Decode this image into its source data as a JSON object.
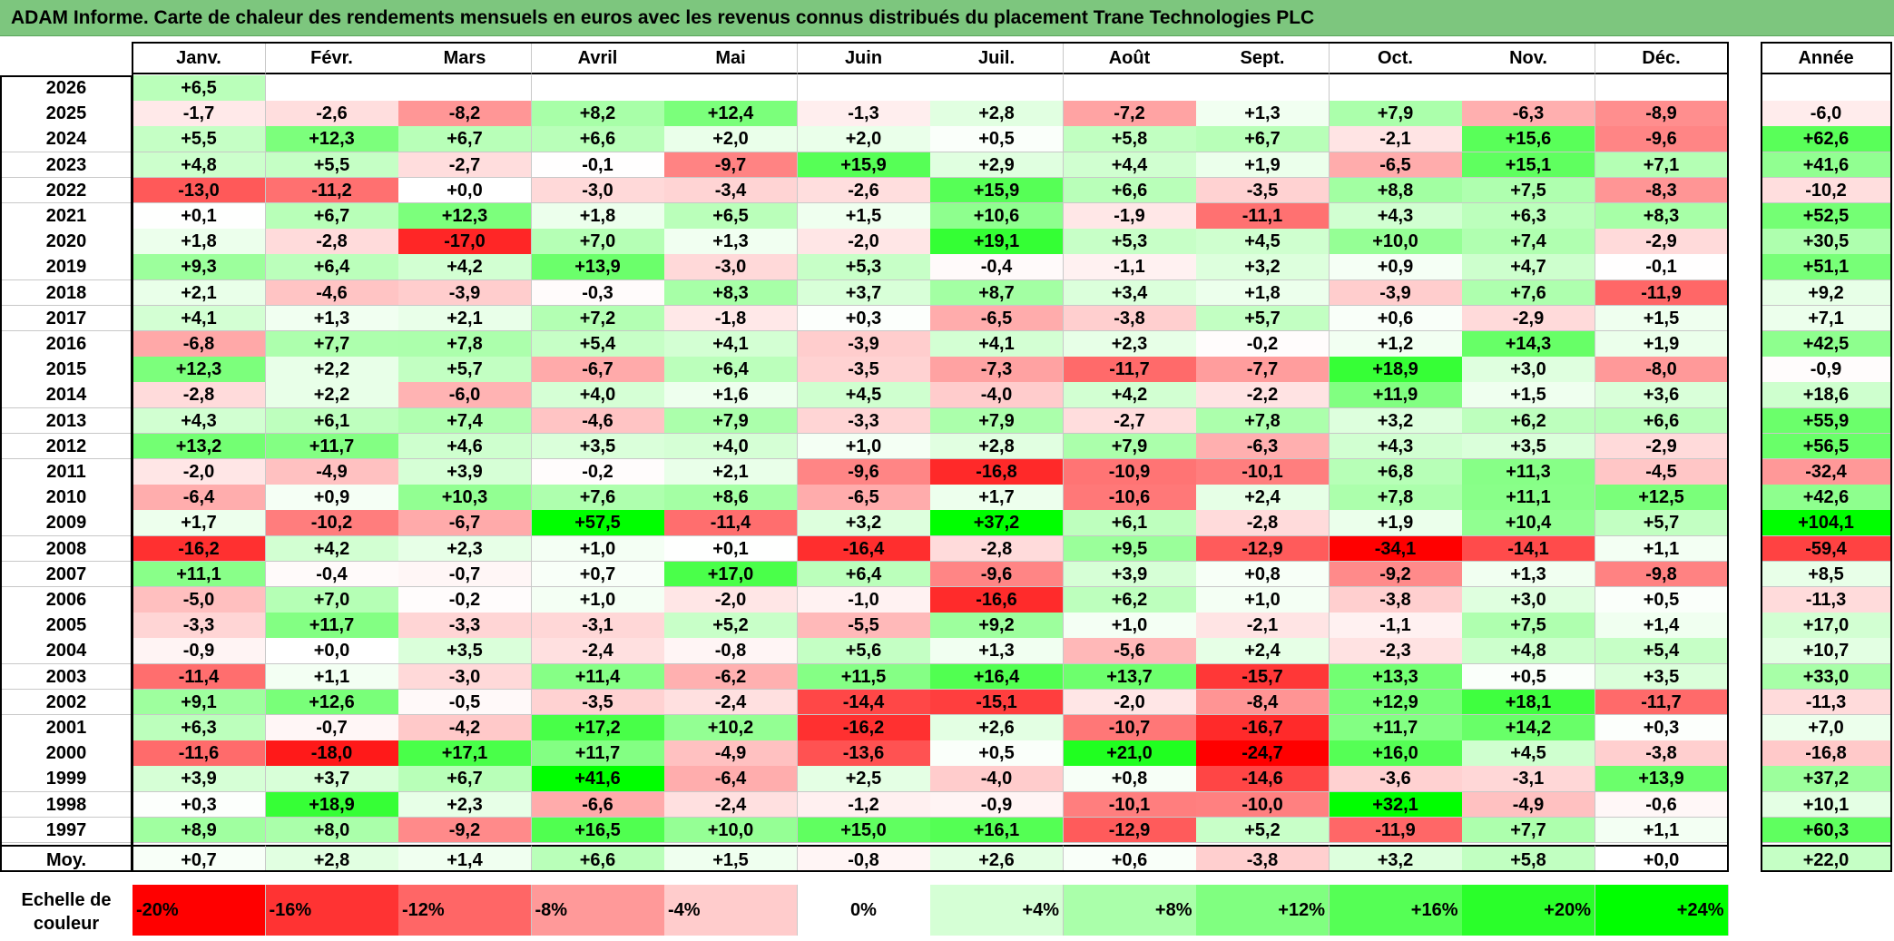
{
  "title": "ADAM Informe. Carte de chaleur des rendements mensuels en euros avec les revenus connus distribués du placement Trane Technologies PLC",
  "chart_data": {
    "type": "heatmap",
    "columns": [
      "Janv.",
      "Févr.",
      "Mars",
      "Avril",
      "Mai",
      "Juin",
      "Juil.",
      "Août",
      "Sept.",
      "Oct.",
      "Nov.",
      "Déc."
    ],
    "year_column_label": "Année",
    "rows": [
      {
        "year": "2026",
        "months": [
          "+6,5",
          "",
          "",
          "",
          "",
          "",
          "",
          "",
          "",
          "",
          "",
          ""
        ],
        "annual": ""
      },
      {
        "year": "2025",
        "months": [
          "-1,7",
          "-2,6",
          "-8,2",
          "+8,2",
          "+12,4",
          "-1,3",
          "+2,8",
          "-7,2",
          "+1,3",
          "+7,9",
          "-6,3",
          "-8,9"
        ],
        "annual": "-6,0"
      },
      {
        "year": "2024",
        "months": [
          "+5,5",
          "+12,3",
          "+6,7",
          "+6,6",
          "+2,0",
          "+2,0",
          "+0,5",
          "+5,8",
          "+6,7",
          "-2,1",
          "+15,6",
          "-9,6"
        ],
        "annual": "+62,6"
      },
      {
        "year": "2023",
        "months": [
          "+4,8",
          "+5,5",
          "-2,7",
          "-0,1",
          "-9,7",
          "+15,9",
          "+2,9",
          "+4,4",
          "+1,9",
          "-6,5",
          "+15,1",
          "+7,1"
        ],
        "annual": "+41,6"
      },
      {
        "year": "2022",
        "months": [
          "-13,0",
          "-11,2",
          "+0,0",
          "-3,0",
          "-3,4",
          "-2,6",
          "+15,9",
          "+6,6",
          "-3,5",
          "+8,8",
          "+7,5",
          "-8,3"
        ],
        "annual": "-10,2"
      },
      {
        "year": "2021",
        "months": [
          "+0,1",
          "+6,7",
          "+12,3",
          "+1,8",
          "+6,5",
          "+1,5",
          "+10,6",
          "-1,9",
          "-11,1",
          "+4,3",
          "+6,3",
          "+8,3"
        ],
        "annual": "+52,5"
      },
      {
        "year": "2020",
        "months": [
          "+1,8",
          "-2,8",
          "-17,0",
          "+7,0",
          "+1,3",
          "-2,0",
          "+19,1",
          "+5,3",
          "+4,5",
          "+10,0",
          "+7,4",
          "-2,9"
        ],
        "annual": "+30,5"
      },
      {
        "year": "2019",
        "months": [
          "+9,3",
          "+6,4",
          "+4,2",
          "+13,9",
          "-3,0",
          "+5,3",
          "-0,4",
          "-1,1",
          "+3,2",
          "+0,9",
          "+4,7",
          "-0,1"
        ],
        "annual": "+51,1"
      },
      {
        "year": "2018",
        "months": [
          "+2,1",
          "-4,6",
          "-3,9",
          "-0,3",
          "+8,3",
          "+3,7",
          "+8,7",
          "+3,4",
          "+1,8",
          "-3,9",
          "+7,6",
          "-11,9"
        ],
        "annual": "+9,2"
      },
      {
        "year": "2017",
        "months": [
          "+4,1",
          "+1,3",
          "+2,1",
          "+7,2",
          "-1,8",
          "+0,3",
          "-6,5",
          "-3,8",
          "+5,7",
          "+0,6",
          "-2,9",
          "+1,5"
        ],
        "annual": "+7,1"
      },
      {
        "year": "2016",
        "months": [
          "-6,8",
          "+7,7",
          "+7,8",
          "+5,4",
          "+4,1",
          "-3,9",
          "+4,1",
          "+2,3",
          "-0,2",
          "+1,2",
          "+14,3",
          "+1,9"
        ],
        "annual": "+42,5"
      },
      {
        "year": "2015",
        "months": [
          "+12,3",
          "+2,2",
          "+5,7",
          "-6,7",
          "+6,4",
          "-3,5",
          "-7,3",
          "-11,7",
          "-7,7",
          "+18,9",
          "+3,0",
          "-8,0"
        ],
        "annual": "-0,9"
      },
      {
        "year": "2014",
        "months": [
          "-2,8",
          "+2,2",
          "-6,0",
          "+4,0",
          "+1,6",
          "+4,5",
          "-4,0",
          "+4,2",
          "-2,2",
          "+11,9",
          "+1,5",
          "+3,6"
        ],
        "annual": "+18,6"
      },
      {
        "year": "2013",
        "months": [
          "+4,3",
          "+6,1",
          "+7,4",
          "-4,6",
          "+7,9",
          "-3,3",
          "+7,9",
          "-2,7",
          "+7,8",
          "+3,2",
          "+6,2",
          "+6,6"
        ],
        "annual": "+55,9"
      },
      {
        "year": "2012",
        "months": [
          "+13,2",
          "+11,7",
          "+4,6",
          "+3,5",
          "+4,0",
          "+1,0",
          "+2,8",
          "+7,9",
          "-6,3",
          "+4,3",
          "+3,5",
          "-2,9"
        ],
        "annual": "+56,5"
      },
      {
        "year": "2011",
        "months": [
          "-2,0",
          "-4,9",
          "+3,9",
          "-0,2",
          "+2,1",
          "-9,6",
          "-16,8",
          "-10,9",
          "-10,1",
          "+6,8",
          "+11,3",
          "-4,5"
        ],
        "annual": "-32,4"
      },
      {
        "year": "2010",
        "months": [
          "-6,4",
          "+0,9",
          "+10,3",
          "+7,6",
          "+8,6",
          "-6,5",
          "+1,7",
          "-10,6",
          "+2,4",
          "+7,8",
          "+11,1",
          "+12,5"
        ],
        "annual": "+42,6"
      },
      {
        "year": "2009",
        "months": [
          "+1,7",
          "-10,2",
          "-6,7",
          "+57,5",
          "-11,4",
          "+3,2",
          "+37,2",
          "+6,1",
          "-2,8",
          "+1,9",
          "+10,4",
          "+5,7"
        ],
        "annual": "+104,1"
      },
      {
        "year": "2008",
        "months": [
          "-16,2",
          "+4,2",
          "+2,3",
          "+1,0",
          "+0,1",
          "-16,4",
          "-2,8",
          "+9,5",
          "-12,9",
          "-34,1",
          "-14,1",
          "+1,1"
        ],
        "annual": "-59,4"
      },
      {
        "year": "2007",
        "months": [
          "+11,1",
          "-0,4",
          "-0,7",
          "+0,7",
          "+17,0",
          "+6,4",
          "-9,6",
          "+3,9",
          "+0,8",
          "-9,2",
          "+1,3",
          "-9,8"
        ],
        "annual": "+8,5"
      },
      {
        "year": "2006",
        "months": [
          "-5,0",
          "+7,0",
          "-0,2",
          "+1,0",
          "-2,0",
          "-1,0",
          "-16,6",
          "+6,2",
          "+1,0",
          "-3,8",
          "+3,0",
          "+0,5"
        ],
        "annual": "-11,3"
      },
      {
        "year": "2005",
        "months": [
          "-3,3",
          "+11,7",
          "-3,3",
          "-3,1",
          "+5,2",
          "-5,5",
          "+9,2",
          "+1,0",
          "-2,1",
          "-1,1",
          "+7,5",
          "+1,4"
        ],
        "annual": "+17,0"
      },
      {
        "year": "2004",
        "months": [
          "-0,9",
          "+0,0",
          "+3,5",
          "-2,4",
          "-0,8",
          "+5,6",
          "+1,3",
          "-5,6",
          "+2,4",
          "-2,3",
          "+4,8",
          "+5,4"
        ],
        "annual": "+10,7"
      },
      {
        "year": "2003",
        "months": [
          "-11,4",
          "+1,1",
          "-3,0",
          "+11,4",
          "-6,2",
          "+11,5",
          "+16,4",
          "+13,7",
          "-15,7",
          "+13,3",
          "+0,5",
          "+3,5"
        ],
        "annual": "+33,0"
      },
      {
        "year": "2002",
        "months": [
          "+9,1",
          "+12,6",
          "-0,5",
          "-3,5",
          "-2,4",
          "-14,4",
          "-15,1",
          "-2,0",
          "-8,4",
          "+12,9",
          "+18,1",
          "-11,7"
        ],
        "annual": "-11,3"
      },
      {
        "year": "2001",
        "months": [
          "+6,3",
          "-0,7",
          "-4,2",
          "+17,2",
          "+10,2",
          "-16,2",
          "+2,6",
          "-10,7",
          "-16,7",
          "+11,7",
          "+14,2",
          "+0,3"
        ],
        "annual": "+7,0"
      },
      {
        "year": "2000",
        "months": [
          "-11,6",
          "-18,0",
          "+17,1",
          "+11,7",
          "-4,9",
          "-13,6",
          "+0,5",
          "+21,0",
          "-24,7",
          "+16,0",
          "+4,5",
          "-3,8"
        ],
        "annual": "-16,8"
      },
      {
        "year": "1999",
        "months": [
          "+3,9",
          "+3,7",
          "+6,7",
          "+41,6",
          "-6,4",
          "+2,5",
          "-4,0",
          "+0,8",
          "-14,6",
          "-3,6",
          "-3,1",
          "+13,9"
        ],
        "annual": "+37,2"
      },
      {
        "year": "1998",
        "months": [
          "+0,3",
          "+18,9",
          "+2,3",
          "-6,6",
          "-2,4",
          "-1,2",
          "-0,9",
          "-10,1",
          "-10,0",
          "+32,1",
          "-4,9",
          "-0,6"
        ],
        "annual": "+10,1"
      },
      {
        "year": "1997",
        "months": [
          "+8,9",
          "+8,0",
          "-9,2",
          "+16,5",
          "+10,0",
          "+15,0",
          "+16,1",
          "-12,9",
          "+5,2",
          "-11,9",
          "+7,7",
          "+1,1"
        ],
        "annual": "+60,3"
      }
    ],
    "average": {
      "label": "Moy.",
      "months": [
        "+0,7",
        "+2,8",
        "+1,4",
        "+6,6",
        "+1,5",
        "-0,8",
        "+2,6",
        "+0,6",
        "-3,8",
        "+3,2",
        "+5,8",
        "+0,0"
      ],
      "annual": "+22,0"
    },
    "color_scale": {
      "label_line1": "Echelle de",
      "label_line2": "couleur",
      "stops": [
        "-20%",
        "-16%",
        "-12%",
        "-8%",
        "-4%",
        "0%",
        "+4%",
        "+8%",
        "+12%",
        "+16%",
        "+20%",
        "+24%"
      ],
      "stop_values": [
        -20,
        -16,
        -12,
        -8,
        -4,
        0,
        4,
        8,
        12,
        16,
        20,
        24
      ],
      "negative_color": "#ff0000",
      "neutral_color": "#ffffff",
      "positive_color": "#00ff00"
    }
  }
}
